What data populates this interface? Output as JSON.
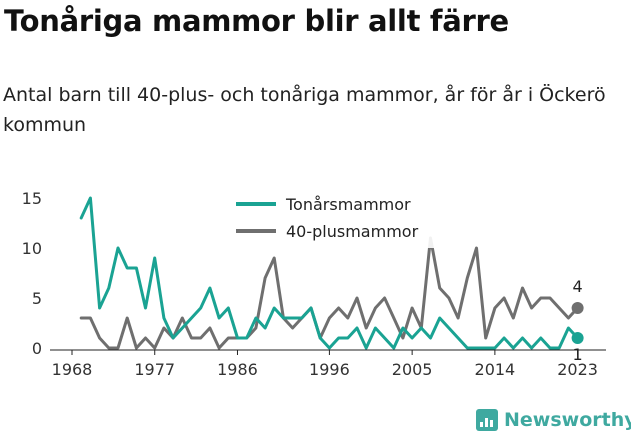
{
  "header": {
    "title": "Tonåriga mammor blir allt färre",
    "subtitle": "Antal barn till 40-plus- och tonåriga mammor, år för år i Öckerö kommun"
  },
  "brand": {
    "name": "Newsworthy",
    "color": "#3fa9a0"
  },
  "chart_data": {
    "type": "line",
    "title": "",
    "xlabel": "",
    "ylabel": "",
    "x": [
      1969,
      1970,
      1971,
      1972,
      1973,
      1974,
      1975,
      1976,
      1977,
      1978,
      1979,
      1980,
      1981,
      1982,
      1983,
      1984,
      1985,
      1986,
      1987,
      1988,
      1989,
      1990,
      1991,
      1992,
      1993,
      1994,
      1995,
      1996,
      1997,
      1998,
      1999,
      2000,
      2001,
      2002,
      2003,
      2004,
      2005,
      2006,
      2007,
      2008,
      2009,
      2010,
      2011,
      2012,
      2013,
      2014,
      2015,
      2016,
      2017,
      2018,
      2019,
      2020,
      2021,
      2022,
      2023
    ],
    "series": [
      {
        "name": "Tonårsmammor",
        "color": "#1aa393",
        "values": [
          13,
          15,
          4,
          6,
          10,
          8,
          8,
          4,
          9,
          3,
          1,
          2,
          3,
          4,
          6,
          3,
          4,
          1,
          1,
          3,
          2,
          4,
          3,
          3,
          3,
          4,
          1,
          0,
          1,
          1,
          2,
          0,
          2,
          1,
          0,
          2,
          1,
          2,
          1,
          3,
          2,
          1,
          0,
          0,
          0,
          0,
          1,
          0,
          1,
          0,
          1,
          0,
          0,
          2,
          1
        ]
      },
      {
        "name": "40-plusmammor",
        "color": "#6f6f6f",
        "values": [
          3,
          3,
          1,
          0,
          0,
          3,
          0,
          1,
          0,
          2,
          1,
          3,
          1,
          1,
          2,
          0,
          1,
          1,
          1,
          2,
          7,
          9,
          3,
          2,
          3,
          4,
          1,
          3,
          4,
          3,
          5,
          2,
          4,
          5,
          3,
          1,
          4,
          2,
          11,
          6,
          5,
          3,
          7,
          10,
          1,
          4,
          5,
          3,
          6,
          4,
          5,
          5,
          4,
          3,
          4
        ]
      }
    ],
    "end_labels": {
      "Tonårsmammor": "1",
      "40-plusmammor": "4"
    },
    "x_ticks": [
      "1968",
      "1977",
      "1986",
      "1996",
      "2005",
      "2014",
      "2023"
    ],
    "y_ticks": [
      "0",
      "5",
      "10",
      "15"
    ],
    "xlim": [
      1968,
      2025
    ],
    "ylim": [
      0,
      15
    ],
    "grid": false,
    "legend_position": "top-center"
  }
}
